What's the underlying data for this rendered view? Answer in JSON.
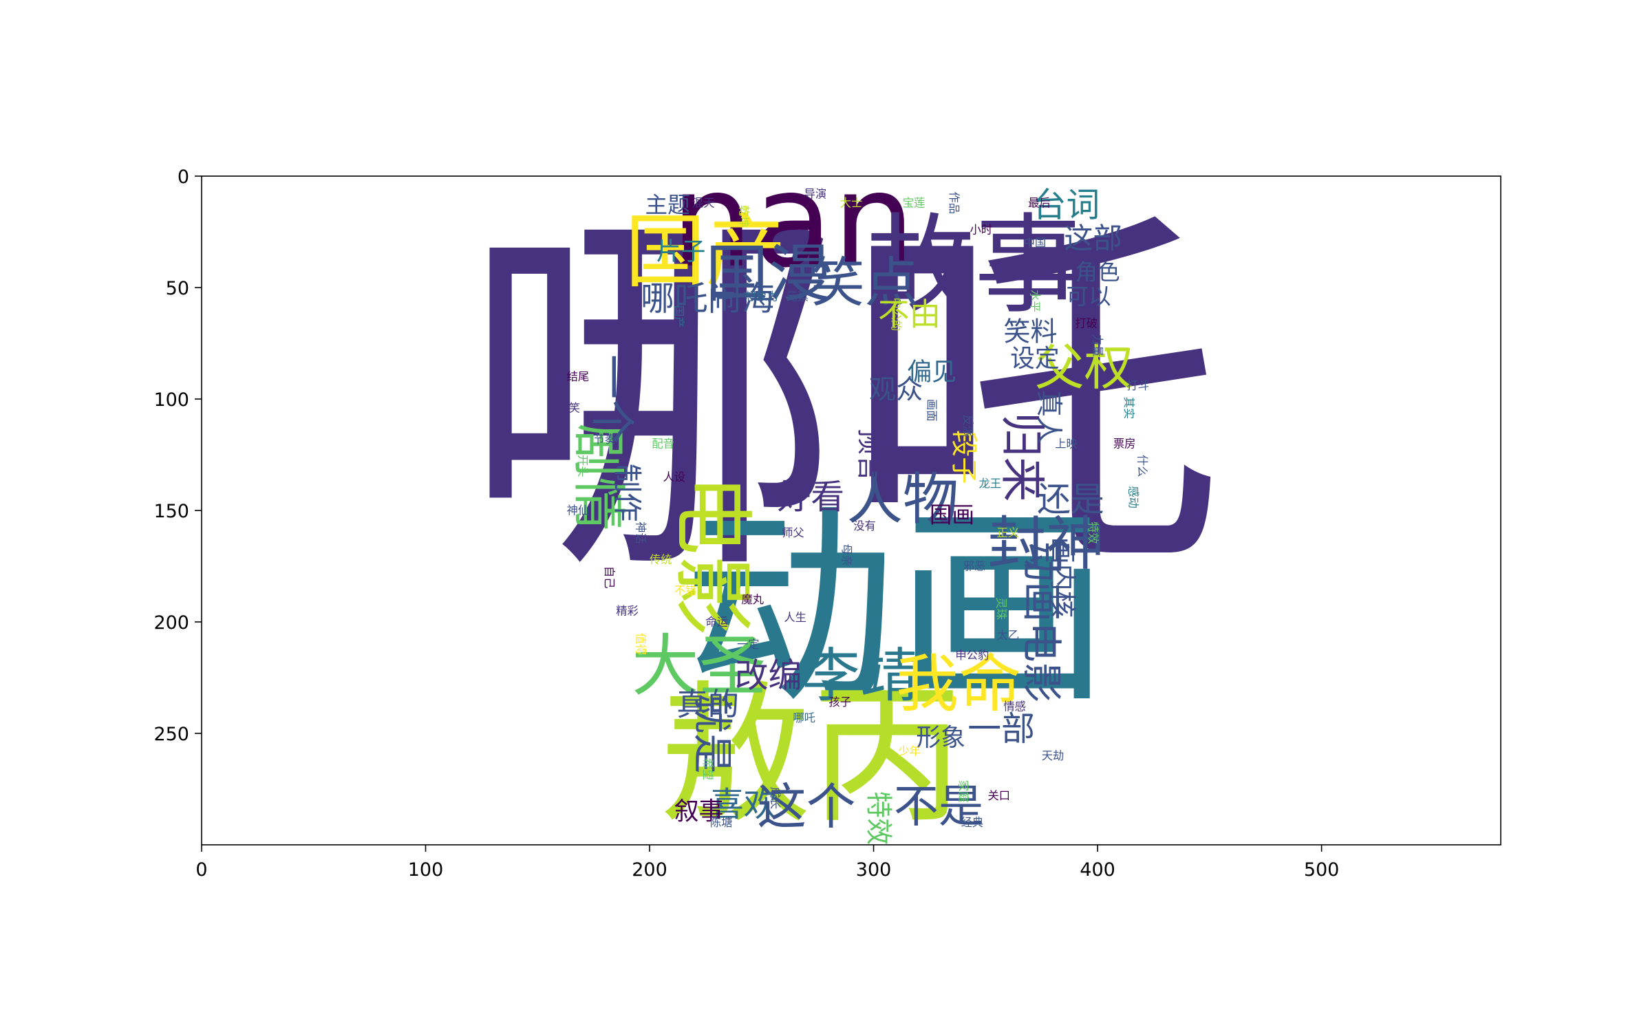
{
  "x_axis": {
    "ticks": [
      {
        "value": 0,
        "label": "0"
      },
      {
        "value": 100,
        "label": "100"
      },
      {
        "value": 200,
        "label": "200"
      },
      {
        "value": 300,
        "label": "300"
      },
      {
        "value": 400,
        "label": "400"
      },
      {
        "value": 500,
        "label": "500"
      }
    ],
    "range": [
      0,
      580
    ]
  },
  "y_axis": {
    "ticks": [
      {
        "value": 0,
        "label": "0"
      },
      {
        "value": 50,
        "label": "50"
      },
      {
        "value": 100,
        "label": "100"
      },
      {
        "value": 150,
        "label": "150"
      },
      {
        "value": 200,
        "label": "200"
      },
      {
        "value": 250,
        "label": "250"
      }
    ],
    "range": [
      0,
      300
    ],
    "inverted": true
  },
  "palette": {
    "dark_purple": "#440154",
    "indigo": "#46327e",
    "blue": "#365c8d",
    "teal": "#277f8e",
    "green": "#1fa187",
    "lime": "#4ac16d",
    "yellow_green": "#a0da39",
    "yellow": "#fde725"
  },
  "words": [
    {
      "text": "哪吒",
      "x": 286,
      "y": 100,
      "size": 170,
      "color": "#46327e"
    },
    {
      "text": "动画",
      "x": 310,
      "y": 194,
      "size": 95,
      "color": "#2a788e"
    },
    {
      "text": "敖丙",
      "x": 272,
      "y": 260,
      "size": 68,
      "color": "#b5de2b"
    },
    {
      "text": "nan",
      "x": 264,
      "y": 20,
      "size": 58,
      "color": "#440154"
    },
    {
      "text": "故事",
      "x": 345,
      "y": 40,
      "size": 48,
      "color": "#46327e"
    },
    {
      "text": "国产",
      "x": 225,
      "y": 34,
      "size": 36,
      "color": "#fde725"
    },
    {
      "text": "国漫",
      "x": 253,
      "y": 44,
      "size": 28,
      "color": "#3b528b"
    },
    {
      "text": "笑点",
      "x": 296,
      "y": 48,
      "size": 24,
      "color": "#3b528b"
    },
    {
      "text": "哪吒闹海",
      "x": 226,
      "y": 55,
      "size": 15,
      "color": "#3b528b"
    },
    {
      "text": "台词",
      "x": 386,
      "y": 13,
      "size": 15,
      "color": "#277f8e"
    },
    {
      "text": "这部",
      "x": 398,
      "y": 28,
      "size": 13,
      "color": "#3b528b"
    },
    {
      "text": "不由",
      "x": 316,
      "y": 62,
      "size": 14,
      "color": "#bddf26"
    },
    {
      "text": "父权",
      "x": 394,
      "y": 86,
      "size": 22,
      "color": "#bddf26"
    },
    {
      "text": "人物",
      "x": 313,
      "y": 145,
      "size": 25,
      "color": "#3b528b"
    },
    {
      "text": "好看",
      "x": 272,
      "y": 144,
      "size": 15,
      "color": "#46327e"
    },
    {
      "text": "封神",
      "x": 377,
      "y": 165,
      "size": 26,
      "color": "#3b528b"
    },
    {
      "text": "还是",
      "x": 388,
      "y": 145,
      "size": 15,
      "color": "#3b528b"
    },
    {
      "text": "大圣",
      "x": 222,
      "y": 220,
      "size": 30,
      "color": "#5ec962"
    },
    {
      "text": "李靖",
      "x": 294,
      "y": 224,
      "size": 26,
      "color": "#2a788e"
    },
    {
      "text": "我命",
      "x": 338,
      "y": 228,
      "size": 28,
      "color": "#fde725"
    },
    {
      "text": "改编",
      "x": 253,
      "y": 224,
      "size": 15,
      "color": "#46327e"
    },
    {
      "text": "真的",
      "x": 226,
      "y": 237,
      "size": 14,
      "color": "#3b528b"
    },
    {
      "text": "喜欢",
      "x": 242,
      "y": 282,
      "size": 15,
      "color": "#31688e"
    },
    {
      "text": "这个",
      "x": 270,
      "y": 283,
      "size": 22,
      "color": "#3b528b"
    },
    {
      "text": "不是",
      "x": 329,
      "y": 283,
      "size": 20,
      "color": "#3b528b"
    },
    {
      "text": "观众",
      "x": 310,
      "y": 96,
      "size": 12,
      "color": "#3b528b"
    },
    {
      "text": "笑料",
      "x": 370,
      "y": 70,
      "size": 12,
      "color": "#3b528b"
    },
    {
      "text": "一部",
      "x": 357,
      "y": 248,
      "size": 15,
      "color": "#3b528b"
    },
    {
      "text": "形象",
      "x": 330,
      "y": 252,
      "size": 11,
      "color": "#3b528b"
    },
    {
      "text": "角色",
      "x": 400,
      "y": 43,
      "size": 10,
      "color": "#3b528b"
    },
    {
      "text": "可以",
      "x": 396,
      "y": 54,
      "size": 10,
      "color": "#3b528b"
    },
    {
      "text": "设定",
      "x": 372,
      "y": 82,
      "size": 11,
      "color": "#3b528b"
    },
    {
      "text": "偏见",
      "x": 326,
      "y": 88,
      "size": 11,
      "color": "#31688e"
    },
    {
      "text": "国画",
      "x": 335,
      "y": 152,
      "size": 10,
      "color": "#440154"
    },
    {
      "text": "叙事",
      "x": 222,
      "y": 285,
      "size": 11,
      "color": "#440154"
    },
    {
      "text": "片子",
      "x": 214,
      "y": 34,
      "size": 11,
      "color": "#277f8e"
    },
    {
      "text": "主题",
      "x": 208,
      "y": 13,
      "size": 10,
      "color": "#3b528b"
    }
  ],
  "vertical_words": [
    {
      "text": "电影",
      "x": 228,
      "y": 170,
      "size": 36,
      "color": "#bddf26"
    },
    {
      "text": "剧情",
      "x": 177,
      "y": 135,
      "size": 24,
      "color": "#5ec962"
    },
    {
      "text": "一个",
      "x": 183,
      "y": 100,
      "size": 20,
      "color": "#3b528b"
    },
    {
      "text": "归来",
      "x": 366,
      "y": 126,
      "size": 20,
      "color": "#46327e"
    },
    {
      "text": "动画电影",
      "x": 375,
      "y": 200,
      "size": 18,
      "color": "#3b528b"
    },
    {
      "text": "就是",
      "x": 228,
      "y": 250,
      "size": 18,
      "color": "#3b528b"
    },
    {
      "text": "制作",
      "x": 190,
      "y": 142,
      "size": 13,
      "color": "#3b528b"
    },
    {
      "text": "预言",
      "x": 298,
      "y": 125,
      "size": 12,
      "color": "#46327e"
    },
    {
      "text": "段子",
      "x": 340,
      "y": 126,
      "size": 12,
      "color": "#fde725"
    },
    {
      "text": "真人",
      "x": 378,
      "y": 108,
      "size": 12,
      "color": "#3b528b"
    },
    {
      "text": "画内核",
      "x": 384,
      "y": 180,
      "size": 12,
      "color": "#3b528b"
    },
    {
      "text": "特效",
      "x": 302,
      "y": 288,
      "size": 12,
      "color": "#5ec962"
    }
  ],
  "tiny_words": [
    {
      "text": "中公的",
      "x": 310,
      "y": 62,
      "color": "#bddf26"
    },
    {
      "text": "搞笑",
      "x": 164,
      "y": 104,
      "color": "#46327e"
    },
    {
      "text": "没有",
      "x": 296,
      "y": 157,
      "color": "#46327e"
    },
    {
      "text": "自己",
      "x": 182,
      "y": 180,
      "color": "#440154"
    },
    {
      "text": "不错",
      "x": 216,
      "y": 186,
      "color": "#fde725"
    },
    {
      "text": "哪吒",
      "x": 269,
      "y": 243,
      "color": "#31688e"
    },
    {
      "text": "什么",
      "x": 420,
      "y": 130,
      "color": "#3b528b"
    },
    {
      "text": "最后",
      "x": 374,
      "y": 12,
      "color": "#440154"
    },
    {
      "text": "打斗",
      "x": 418,
      "y": 94,
      "color": "#3b528b"
    },
    {
      "text": "其实",
      "x": 414,
      "y": 104,
      "color": "#277f8e"
    },
    {
      "text": "想象力",
      "x": 250,
      "y": 54,
      "color": "#31688e"
    },
    {
      "text": "元素",
      "x": 266,
      "y": 54,
      "color": "#3b528b"
    },
    {
      "text": "国产",
      "x": 213,
      "y": 63,
      "color": "#31688e"
    },
    {
      "text": "命运",
      "x": 230,
      "y": 200,
      "color": "#46327e"
    },
    {
      "text": "魔丸",
      "x": 246,
      "y": 190,
      "color": "#440154"
    },
    {
      "text": "灵珠",
      "x": 357,
      "y": 194,
      "color": "#5ec962"
    },
    {
      "text": "太乙",
      "x": 360,
      "y": 206,
      "color": "#3b528b"
    },
    {
      "text": "申公豹",
      "x": 344,
      "y": 215,
      "color": "#46327e"
    },
    {
      "text": "家庭",
      "x": 340,
      "y": 276,
      "color": "#5ec962"
    },
    {
      "text": "经典",
      "x": 344,
      "y": 290,
      "color": "#3b528b"
    },
    {
      "text": "孩子",
      "x": 285,
      "y": 236,
      "color": "#440154"
    },
    {
      "text": "成长",
      "x": 256,
      "y": 279,
      "color": "#3b528b"
    },
    {
      "text": "少年",
      "x": 316,
      "y": 258,
      "color": "#fde725"
    },
    {
      "text": "情感",
      "x": 363,
      "y": 238,
      "color": "#46327e"
    },
    {
      "text": "画面",
      "x": 326,
      "y": 105,
      "color": "#3b528b"
    },
    {
      "text": "配音",
      "x": 206,
      "y": 120,
      "color": "#5ec962"
    },
    {
      "text": "人设",
      "x": 211,
      "y": 135,
      "color": "#440154"
    },
    {
      "text": "神话",
      "x": 196,
      "y": 160,
      "color": "#3b528b"
    },
    {
      "text": "传统",
      "x": 205,
      "y": 172,
      "color": "#bddf26"
    },
    {
      "text": "精彩",
      "x": 190,
      "y": 195,
      "color": "#46327e"
    },
    {
      "text": "感动",
      "x": 416,
      "y": 144,
      "color": "#277f8e"
    },
    {
      "text": "票房",
      "x": 412,
      "y": 120,
      "color": "#440154"
    },
    {
      "text": "上映",
      "x": 386,
      "y": 120,
      "color": "#3b528b"
    },
    {
      "text": "特效",
      "x": 398,
      "y": 160,
      "color": "#5ec962"
    },
    {
      "text": "导演",
      "x": 274,
      "y": 8,
      "color": "#46327e"
    },
    {
      "text": "大士",
      "x": 290,
      "y": 12,
      "color": "#bddf26"
    },
    {
      "text": "作品",
      "x": 336,
      "y": 12,
      "color": "#3b528b"
    },
    {
      "text": "小时",
      "x": 348,
      "y": 24,
      "color": "#440154"
    },
    {
      "text": "中国",
      "x": 372,
      "y": 30,
      "color": "#3b528b"
    },
    {
      "text": "水平",
      "x": 372,
      "y": 56,
      "color": "#5ec962"
    },
    {
      "text": "打破",
      "x": 395,
      "y": 66,
      "color": "#440154"
    },
    {
      "text": "世界",
      "x": 358,
      "y": 94,
      "color": "#46327e"
    },
    {
      "text": "反派",
      "x": 342,
      "y": 112,
      "color": "#3b528b"
    },
    {
      "text": "龙王",
      "x": 352,
      "y": 138,
      "color": "#277f8e"
    },
    {
      "text": "天劫",
      "x": 380,
      "y": 260,
      "color": "#3b528b"
    },
    {
      "text": "希望",
      "x": 226,
      "y": 266,
      "color": "#5ec962"
    },
    {
      "text": "一定",
      "x": 244,
      "y": 210,
      "color": "#3b528b"
    },
    {
      "text": "人生",
      "x": 265,
      "y": 198,
      "color": "#46327e"
    },
    {
      "text": "值得",
      "x": 196,
      "y": 210,
      "color": "#fde725"
    },
    {
      "text": "节奏",
      "x": 180,
      "y": 118,
      "color": "#3b528b"
    },
    {
      "text": "结尾",
      "x": 168,
      "y": 90,
      "color": "#440154"
    },
    {
      "text": "开头",
      "x": 170,
      "y": 130,
      "color": "#5ec962"
    },
    {
      "text": "神仙",
      "x": 168,
      "y": 150,
      "color": "#3b528b"
    },
    {
      "text": "师父",
      "x": 264,
      "y": 160,
      "color": "#46327e"
    },
    {
      "text": "母亲",
      "x": 288,
      "y": 170,
      "color": "#3b528b"
    },
    {
      "text": "正义",
      "x": 360,
      "y": 160,
      "color": "#bddf26"
    },
    {
      "text": "邪恶",
      "x": 345,
      "y": 175,
      "color": "#3b528b"
    },
    {
      "text": "力量",
      "x": 400,
      "y": 76,
      "color": "#3b528b"
    },
    {
      "text": "宝莲",
      "x": 318,
      "y": 12,
      "color": "#5ec962"
    },
    {
      "text": "混天",
      "x": 224,
      "y": 12,
      "color": "#46327e"
    },
    {
      "text": "乾坤",
      "x": 242,
      "y": 18,
      "color": "#bddf26"
    },
    {
      "text": "陈塘",
      "x": 232,
      "y": 290,
      "color": "#3b528b"
    },
    {
      "text": "关口",
      "x": 356,
      "y": 278,
      "color": "#440154"
    }
  ]
}
